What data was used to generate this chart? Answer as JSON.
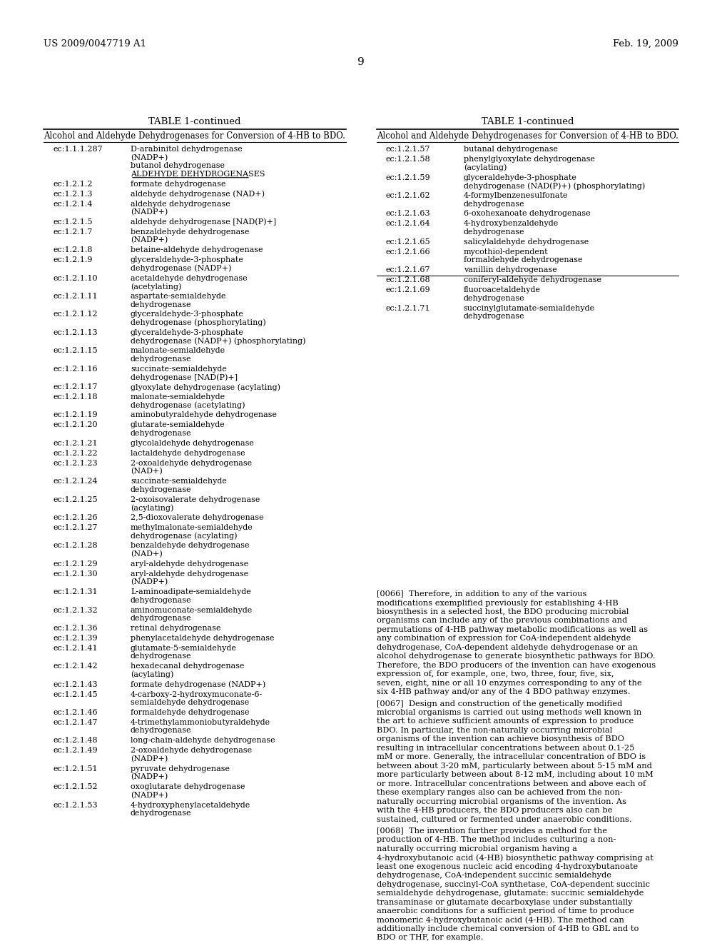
{
  "background_color": "#ffffff",
  "header_left": "US 2009/0047719 A1",
  "header_right": "Feb. 19, 2009",
  "page_number": "9",
  "left_table_title": "TABLE 1-continued",
  "right_table_title": "TABLE 1-continued",
  "table_subtitle": "Alcohol and Aldehyde Dehydrogenases for Conversion of 4-HB to BDO.",
  "left_table_rows": [
    [
      "ec:1.1.1.287",
      "D-arabinitol dehydrogenase\n(NADP+)\nbutanol dehydrogenase\nALDEHYDE DEHYDROGENASES"
    ],
    [
      "ec:1.2.1.2",
      "formate dehydrogenase"
    ],
    [
      "ec:1.2.1.3",
      "aldehyde dehydrogenase (NAD+)"
    ],
    [
      "ec:1.2.1.4",
      "aldehyde dehydrogenase\n(NADP+)"
    ],
    [
      "ec:1.2.1.5",
      "aldehyde dehydrogenase [NAD(P)+]"
    ],
    [
      "ec:1.2.1.7",
      "benzaldehyde dehydrogenase\n(NADP+)"
    ],
    [
      "ec:1.2.1.8",
      "betaine-aldehyde dehydrogenase"
    ],
    [
      "ec:1.2.1.9",
      "glyceraldehyde-3-phosphate\ndehydrogenase (NADP+)"
    ],
    [
      "ec:1.2.1.10",
      "acetaldehyde dehydrogenase\n(acetylating)"
    ],
    [
      "ec:1.2.1.11",
      "aspartate-semialdehyde\ndehydrogenase"
    ],
    [
      "ec:1.2.1.12",
      "glyceraldehyde-3-phosphate\ndehydrogenase (phosphorylating)"
    ],
    [
      "ec:1.2.1.13",
      "glyceraldehyde-3-phosphate\ndehydrogenase (NADP+) (phosphorylating)"
    ],
    [
      "ec:1.2.1.15",
      "malonate-semialdehyde\ndehydrogenase"
    ],
    [
      "ec:1.2.1.16",
      "succinate-semialdehyde\ndehydrogenase [NAD(P)+]"
    ],
    [
      "ec:1.2.1.17",
      "glyoxylate dehydrogenase (acylating)"
    ],
    [
      "ec:1.2.1.18",
      "malonate-semialdehyde\ndehydrogenase (acetylating)"
    ],
    [
      "ec:1.2.1.19",
      "aminobutyraldehyde dehydrogenase"
    ],
    [
      "ec:1.2.1.20",
      "glutarate-semialdehyde\ndehydrogenase"
    ],
    [
      "ec:1.2.1.21",
      "glycolaldehyde dehydrogenase"
    ],
    [
      "ec:1.2.1.22",
      "lactaldehyde dehydrogenase"
    ],
    [
      "ec:1.2.1.23",
      "2-oxoaldehyde dehydrogenase\n(NAD+)"
    ],
    [
      "ec:1.2.1.24",
      "succinate-semialdehyde\ndehydrogenase"
    ],
    [
      "ec:1.2.1.25",
      "2-oxoisovalerate dehydrogenase\n(acylating)"
    ],
    [
      "ec:1.2.1.26",
      "2,5-dioxovalerate dehydrogenase"
    ],
    [
      "ec:1.2.1.27",
      "methylmalonate-semialdehyde\ndehydrogenase (acylating)"
    ],
    [
      "ec:1.2.1.28",
      "benzaldehyde dehydrogenase\n(NAD+)"
    ],
    [
      "ec:1.2.1.29",
      "aryl-aldehyde dehydrogenase"
    ],
    [
      "ec:1.2.1.30",
      "aryl-aldehyde dehydrogenase\n(NADP+)"
    ],
    [
      "ec:1.2.1.31",
      "L-aminoadipate-semialdehyde\ndehydrogenase"
    ],
    [
      "ec:1.2.1.32",
      "aminomuconate-semialdehyde\ndehydrogenase"
    ],
    [
      "ec:1.2.1.36",
      "retinal dehydrogenase"
    ],
    [
      "ec:1.2.1.39",
      "phenylacetaldehyde dehydrogenase"
    ],
    [
      "ec:1.2.1.41",
      "glutamate-5-semialdehyde\ndehydrogenase"
    ],
    [
      "ec:1.2.1.42",
      "hexadecanal dehydrogenase\n(acylating)"
    ],
    [
      "ec:1.2.1.43",
      "formate dehydrogenase (NADP+)"
    ],
    [
      "ec:1.2.1.45",
      "4-carboxy-2-hydroxymuconate-6-\nsemialdehyde dehydrogenase"
    ],
    [
      "ec:1.2.1.46",
      "formaldehyde dehydrogenase"
    ],
    [
      "ec:1.2.1.47",
      "4-trimethylammoniobutyraldehyde\ndehydrogenase"
    ],
    [
      "ec:1.2.1.48",
      "long-chain-aldehyde dehydrogenase"
    ],
    [
      "ec:1.2.1.49",
      "2-oxoaldehyde dehydrogenase\n(NADP+)"
    ],
    [
      "ec:1.2.1.51",
      "pyruvate dehydrogenase\n(NADP+)"
    ],
    [
      "ec:1.2.1.52",
      "oxoglutarate dehydrogenase\n(NADP+)"
    ],
    [
      "ec:1.2.1.53",
      "4-hydroxyphenylacetaldehyde\ndehydrogenase"
    ]
  ],
  "right_table_rows": [
    [
      "ec:1.2.1.57",
      "butanal dehydrogenase"
    ],
    [
      "ec:1.2.1.58",
      "phenylglyoxylate dehydrogenase\n(acylating)"
    ],
    [
      "ec:1.2.1.59",
      "glyceraldehyde-3-phosphate\ndehydrogenase (NAD(P)+) (phosphorylating)"
    ],
    [
      "ec:1.2.1.62",
      "4-formylbenzenesulfonate\ndehydrogenase"
    ],
    [
      "ec:1.2.1.63",
      "6-oxohexanoate dehydrogenase"
    ],
    [
      "ec:1.2.1.64",
      "4-hydroxybenzaldehyde\ndehydrogenase"
    ],
    [
      "ec:1.2.1.65",
      "salicylaldehyde dehydrogenase"
    ],
    [
      "ec:1.2.1.66",
      "mycothiol-dependent\nformaldehyde dehydrogenase"
    ],
    [
      "ec:1.2.1.67",
      "vanillin dehydrogenase"
    ],
    [
      "ec:1.2.1.68",
      "coniferyl-aldehyde dehydrogenase"
    ],
    [
      "ec:1.2.1.69",
      "fluoroacetaldehyde\ndehydrogenase"
    ],
    [
      "ec:1.2.1.71",
      "succinylglutamate-semialdehyde\ndehydrogenase"
    ]
  ],
  "body_text": "[0066]  Therefore, in addition to any of the various modifications exemplified previously for establishing 4-HB biosynthesis in a selected host, the BDO producing microbial organisms can include any of the previous combinations and permutations of 4-HB pathway metabolic modifications as well as any combination of expression for CoA-independent aldehyde dehydrogenase, CoA-dependent aldehyde dehydrogenase or an alcohol dehydrogenase to generate biosynthetic pathways for BDO. Therefore, the BDO producers of the invention can have exogenous expression of, for example, one, two, three, four, five, six, seven, eight, nine or all 10 enzymes corresponding to any of the six 4-HB pathway and/or any of the 4 BDO pathway enzymes.\n[0067]  Design and construction of the genetically modified microbial organisms is carried out using methods well known in the art to achieve sufficient amounts of expression to produce BDO. In particular, the non-naturally occurring microbial organisms of the invention can achieve biosynthesis of BDO resulting in intracellular concentrations between about 0.1-25 mM or more. Generally, the intracellular concentration of BDO is between about 3-20 mM, particularly between about 5-15 mM and more particularly between about 8-12 mM, including about 10 mM or more. Intracellular concentrations between and above each of these exemplary ranges also can be achieved from the non-naturally occurring microbial organisms of the invention. As with the 4-HB producers, the BDO producers also can be sustained, cultured or fermented under anaerobic conditions.\n[0068]  The invention further provides a method for the production of 4-HB. The method includes culturing a non-naturally occurring microbial organism having a 4-hydroxybutanoic acid (4-HB) biosynthetic pathway comprising at least one exogenous nucleic acid encoding 4-hydroxybutanoate dehydrogenase, CoA-independent succinic semialdehyde dehydrogenase, succinyl-CoA synthetase, CoA-dependent succinic semialdehyde dehydrogenase, glutamate: succinic semialdehyde transaminase or glutamate decarboxylase under substantially anaerobic conditions for a sufficient period of time to produce monomeric 4-hydroxybutanoic acid (4-HB). The method can additionally include chemical conversion of 4-HB to GBL and to BDO or THF, for example."
}
